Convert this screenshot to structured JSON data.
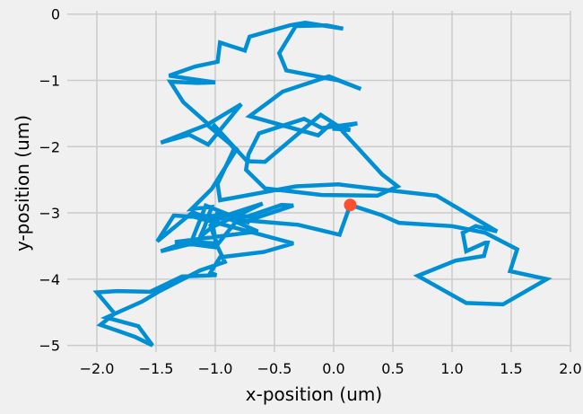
{
  "chart_data": {
    "type": "line",
    "title": "",
    "xlabel": "x-position (um)",
    "ylabel": "y-position (um)",
    "xlim": [
      -2.25,
      2.0
    ],
    "ylim": [
      -5.1,
      0.05
    ],
    "xticks": [
      -2.0,
      -1.5,
      -1.0,
      -0.5,
      0.0,
      0.5,
      1.0,
      1.5,
      2.0
    ],
    "xtick_labels": [
      "−2.0",
      "−1.5",
      "−1.0",
      "−0.5",
      "0.0",
      "0.5",
      "1.0",
      "1.5",
      "2.0"
    ],
    "yticks": [
      0,
      -1,
      -2,
      -3,
      -4,
      -5
    ],
    "ytick_labels": [
      "0",
      "−1",
      "−2",
      "−3",
      "−4",
      "−5"
    ],
    "grid": true,
    "line_color": "#008fd5",
    "marker_color": "#fc4f30",
    "series": [
      {
        "x": [
          0.14,
          0.4,
          0.55,
          1.0,
          1.28,
          1.55,
          1.49,
          1.8,
          1.43,
          1.12,
          0.71,
          1.03,
          1.27,
          1.3,
          1.28,
          1.12,
          1.09,
          1.2,
          1.38,
          0.87,
          0.37,
          0.04,
          -0.32,
          -0.96,
          -0.98,
          -0.84,
          -1.02,
          -0.73,
          -0.58,
          -0.11,
          0.03,
          0.41,
          0.54,
          0.37,
          -0.1,
          -0.58,
          -0.74,
          -0.72,
          -0.63,
          -0.25,
          -0.1,
          0.2,
          -0.01,
          0.14,
          -0.02,
          -0.13,
          -0.71,
          -0.55,
          -0.43,
          -0.04,
          0.23,
          0.04,
          -0.4,
          -0.46,
          -0.32,
          -0.06,
          0.08,
          -0.24,
          -0.37,
          -0.71,
          -0.75,
          -0.96,
          -0.98,
          -1.17,
          -1.39,
          -1.0,
          -1.15,
          -1.38,
          -1.27,
          -1.06,
          -0.78,
          -1.06,
          -1.22,
          -1.46,
          -1.07,
          -0.82,
          -1.03,
          -1.2,
          -1.03,
          -1.09,
          -1.13,
          -0.98,
          -1.19,
          -1.49,
          -1.35,
          -0.98,
          -0.6,
          -1.02,
          -0.99,
          -1.21,
          -1.21,
          -1.46,
          -1.21,
          -1.08,
          -0.71,
          -1.0,
          -0.64,
          -1.34,
          -1.0,
          -0.82,
          -0.73,
          -0.34,
          -0.44,
          -0.72,
          -0.84,
          -1.2,
          -0.34,
          -0.59,
          -0.96,
          -1.04,
          -0.99,
          -1.28,
          -1.55,
          -1.83,
          -2.0,
          -1.85,
          -1.97,
          -1.68,
          -1.53,
          -1.65,
          -1.92,
          -1.62,
          -1.48,
          -1.13,
          -0.92,
          -0.98,
          -1.04,
          -0.96,
          -0.63,
          -0.3,
          0.05,
          0.14
        ],
        "y": [
          -2.88,
          -3.03,
          -3.15,
          -3.2,
          -3.3,
          -3.55,
          -3.88,
          -4.0,
          -4.38,
          -4.36,
          -3.95,
          -3.72,
          -3.65,
          -3.45,
          -3.45,
          -3.58,
          -3.3,
          -3.2,
          -3.28,
          -2.74,
          -2.64,
          -2.57,
          -2.6,
          -2.81,
          -2.56,
          -2.03,
          -1.66,
          -2.22,
          -2.23,
          -1.52,
          -1.68,
          -2.42,
          -2.6,
          -2.74,
          -2.73,
          -2.63,
          -2.35,
          -2.12,
          -1.8,
          -1.58,
          -1.72,
          -1.65,
          -1.73,
          -1.75,
          -1.65,
          -1.83,
          -1.54,
          -1.33,
          -1.17,
          -0.94,
          -1.13,
          -1.0,
          -0.85,
          -0.59,
          -0.18,
          -0.17,
          -0.22,
          -0.13,
          -0.17,
          -0.34,
          -0.55,
          -0.43,
          -0.72,
          -0.79,
          -0.93,
          -1.03,
          -1.04,
          -1.02,
          -1.33,
          -1.66,
          -1.36,
          -1.97,
          -1.82,
          -1.94,
          -1.67,
          -2.04,
          -2.64,
          -2.94,
          -2.91,
          -3.21,
          -3.37,
          -3.14,
          -2.99,
          -3.43,
          -3.04,
          -3.08,
          -2.86,
          -3.21,
          -3.46,
          -3.44,
          -3.42,
          -3.58,
          -3.47,
          -2.89,
          -3.15,
          -3.0,
          -3.28,
          -3.44,
          -3.52,
          -3.12,
          -3.12,
          -2.89,
          -2.88,
          -3.05,
          -3.04,
          -3.05,
          -3.46,
          -3.59,
          -3.67,
          -3.9,
          -3.94,
          -3.96,
          -4.19,
          -4.18,
          -4.2,
          -4.52,
          -4.69,
          -4.87,
          -5.0,
          -4.71,
          -4.58,
          -4.34,
          -4.19,
          -3.87,
          -3.74,
          -3.51,
          -3.19,
          -3.08,
          -3.13,
          -3.18,
          -3.33,
          -2.88
        ]
      }
    ],
    "marker": {
      "x": 0.14,
      "y": -2.88
    }
  }
}
